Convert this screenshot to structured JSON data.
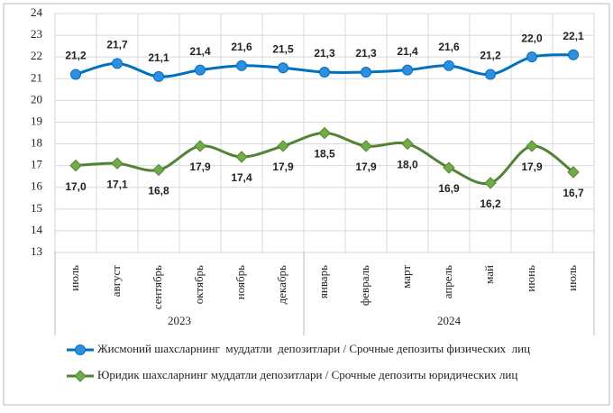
{
  "chart_data": {
    "type": "line",
    "groups": [
      {
        "label": "2023",
        "categories": [
          "июль",
          "август",
          "сентябрь",
          "октябрь",
          "ноябрь",
          "декабрь"
        ]
      },
      {
        "label": "2024",
        "categories": [
          "январь",
          "февраль",
          "март",
          "апрель",
          "май",
          "июнь",
          "июль"
        ]
      }
    ],
    "series": [
      {
        "name": "Жисмоний шахсларнинг  муддатли  депозитлари / Срочные депозиты физических  лиц",
        "color": "#0070c0",
        "marker": "circle",
        "values": [
          21.2,
          21.7,
          21.1,
          21.4,
          21.6,
          21.5,
          21.3,
          21.3,
          21.4,
          21.6,
          21.2,
          22.0,
          22.1
        ],
        "value_labels": [
          "21,2",
          "21,7",
          "21,1",
          "21,4",
          "21,6",
          "21,5",
          "21,3",
          "21,3",
          "21,4",
          "21,6",
          "21,2",
          "22,0",
          "22,1"
        ]
      },
      {
        "name": "Юридик шахсларнинг муддатли депозитлари / Срочные депозиты юридических лиц",
        "color": "#548235",
        "marker": "diamond",
        "values": [
          17.0,
          17.1,
          16.8,
          17.9,
          17.4,
          17.9,
          18.5,
          17.9,
          18.0,
          16.9,
          16.2,
          17.9,
          16.7
        ],
        "value_labels": [
          "17,0",
          "17,1",
          "16,8",
          "17,9",
          "17,4",
          "17,9",
          "18,5",
          "17,9",
          "18,0",
          "16,9",
          "16,2",
          "17,9",
          "16,7"
        ]
      }
    ],
    "ylim": [
      13,
      24
    ],
    "yticks": [
      13,
      14,
      15,
      16,
      17,
      18,
      19,
      20,
      21,
      22,
      23,
      24
    ],
    "grid": true
  }
}
